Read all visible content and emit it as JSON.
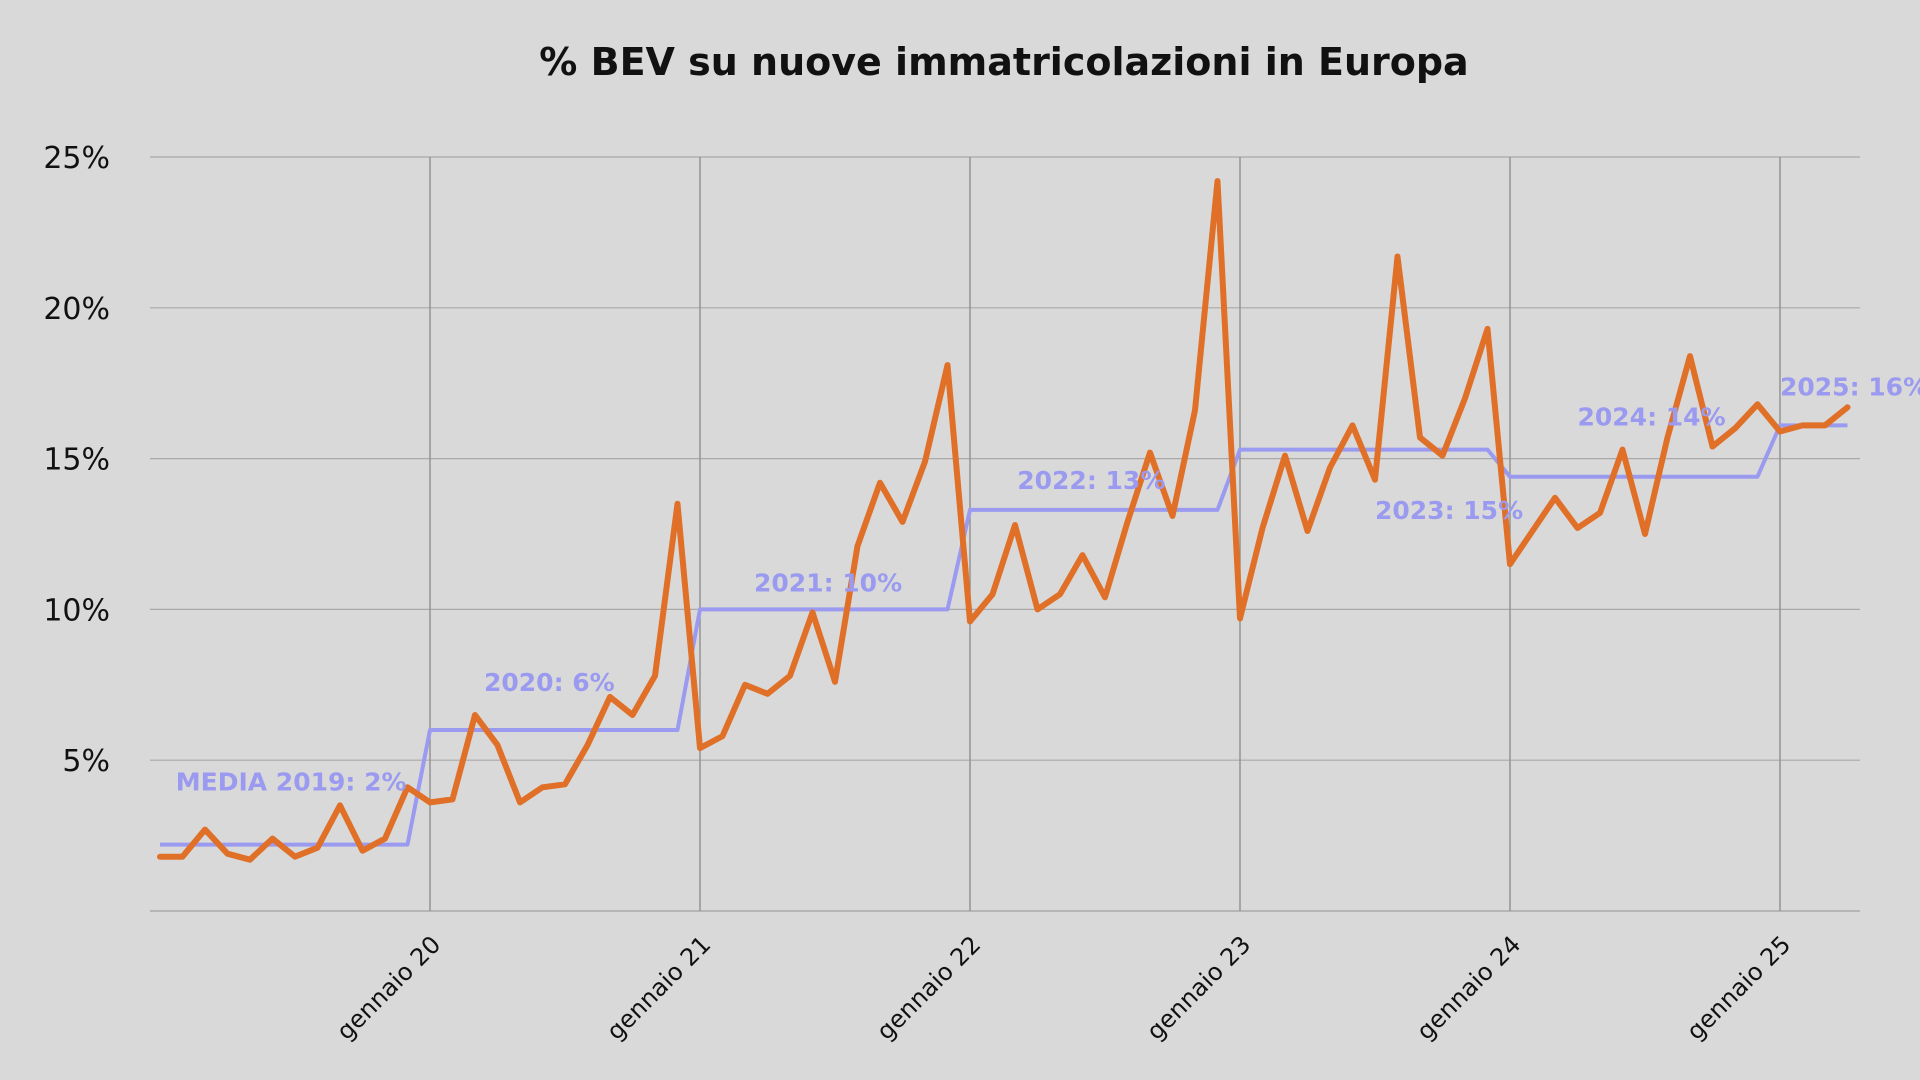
{
  "chart_data": {
    "type": "line",
    "title": "% BEV su nuove immatricolazioni in Europa",
    "xlabel": "",
    "ylabel": "",
    "ylim": [
      0,
      25
    ],
    "y_ticks": [
      5,
      10,
      15,
      20,
      25
    ],
    "y_tick_labels": [
      "5%",
      "10%",
      "15%",
      "20%",
      "25%"
    ],
    "x_ticks": [
      "gennaio 20",
      "gennaio 21",
      "gennaio 22",
      "gennaio 23",
      "gennaio 24",
      "gennaio 25"
    ],
    "x_tick_index": [
      12,
      24,
      36,
      48,
      60,
      72
    ],
    "grid": true,
    "colors": {
      "monthly": "#e07028",
      "yearly": "#9a9af0",
      "grid": "#a9a9a9",
      "background": "#d9d9d9"
    },
    "series": [
      {
        "values": [
          1.8,
          1.8,
          2.7,
          1.9,
          1.7,
          2.4,
          1.8,
          2.1,
          3.5,
          2.0,
          2.4,
          4.1,
          3.6,
          3.7,
          6.5,
          5.5,
          3.6,
          4.1,
          4.2,
          5.5,
          7.1,
          6.5,
          7.8,
          13.5,
          5.4,
          5.8,
          7.5,
          7.2,
          7.8,
          9.9,
          7.6,
          12.1,
          14.2,
          12.9,
          14.9,
          18.1,
          9.6,
          10.5,
          12.8,
          10.0,
          10.5,
          11.8,
          10.4,
          12.9,
          15.2,
          13.1,
          16.6,
          24.2,
          9.7,
          12.7,
          15.1,
          12.6,
          14.7,
          16.1,
          14.3,
          21.7,
          15.7,
          15.1,
          17.0,
          19.3,
          11.5,
          12.6,
          13.7,
          12.7,
          13.2,
          15.3,
          12.5,
          15.7,
          18.4,
          15.4,
          16.0,
          16.8,
          15.9,
          16.1,
          16.1,
          16.7
        ]
      },
      {
        "values": [
          2.2,
          2.2,
          2.2,
          2.2,
          2.2,
          2.2,
          2.2,
          2.2,
          2.2,
          2.2,
          2.2,
          2.2,
          6.0,
          6.0,
          6.0,
          6.0,
          6.0,
          6.0,
          6.0,
          6.0,
          6.0,
          6.0,
          6.0,
          6.0,
          10.0,
          10.0,
          10.0,
          10.0,
          10.0,
          10.0,
          10.0,
          10.0,
          10.0,
          10.0,
          10.0,
          10.0,
          13.3,
          13.3,
          13.3,
          13.3,
          13.3,
          13.3,
          13.3,
          13.3,
          13.3,
          13.3,
          13.3,
          13.3,
          15.3,
          15.3,
          15.3,
          15.3,
          15.3,
          15.3,
          15.3,
          15.3,
          15.3,
          15.3,
          15.3,
          15.3,
          14.4,
          14.4,
          14.4,
          14.4,
          14.4,
          14.4,
          14.4,
          14.4,
          14.4,
          14.4,
          14.4,
          14.4,
          16.1,
          16.1,
          16.1,
          16.1
        ]
      }
    ],
    "annotations": [
      {
        "text": "MEDIA 2019: 2%",
        "x": 0.7,
        "y": 4.0
      },
      {
        "text": "2020: 6%",
        "x": 14.4,
        "y": 7.3
      },
      {
        "text": "2021: 10%",
        "x": 26.4,
        "y": 10.6
      },
      {
        "text": "2022: 13%",
        "x": 38.1,
        "y": 14.0
      },
      {
        "text": "2023: 15%",
        "x": 54.0,
        "y": 13.0
      },
      {
        "text": "2024: 14%",
        "x": 63.0,
        "y": 16.1
      },
      {
        "text": "2025: 16%",
        "x": 72.0,
        "y": 17.1
      }
    ]
  }
}
